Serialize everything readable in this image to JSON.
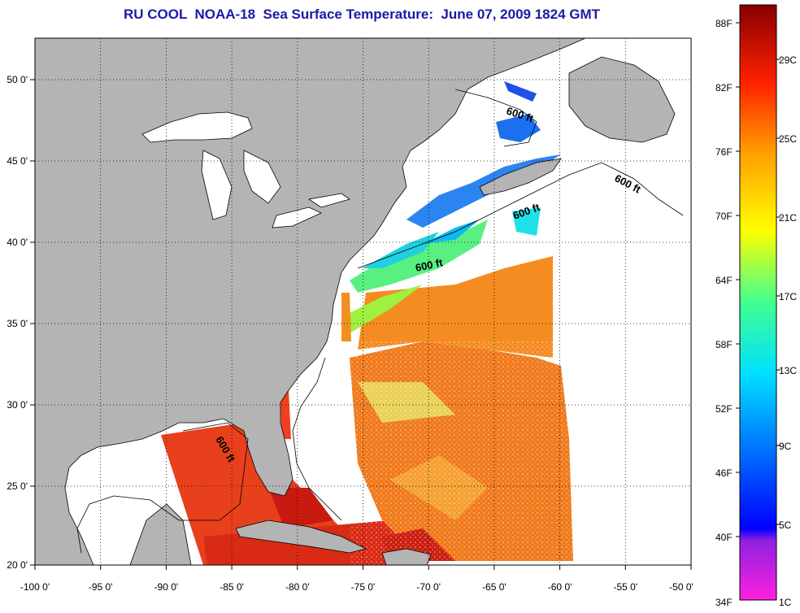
{
  "title": "RU COOL  NOAA-18  Sea Surface Temperature:  June 07, 2009 1824 GMT",
  "map": {
    "lon_ticks": [
      "-100 0'",
      "-95 0'",
      "-90 0'",
      "-85 0'",
      "-80 0'",
      "-75 0'",
      "-70 0'",
      "-65 0'",
      "-60 0'",
      "-55 0'",
      "-50 0'"
    ],
    "lat_ticks": [
      "50 0'",
      "45 0'",
      "40 0'",
      "35 0'",
      "30 0'",
      "25 0'",
      "20 0'"
    ],
    "lon_range": [
      -100,
      -50
    ],
    "lat_range": [
      20,
      52.5
    ],
    "contour_label": "600 ft",
    "land_color": "#b4b4b4",
    "ocean_color": "#ffffff"
  },
  "colorbar": {
    "fahrenheit_labels": [
      "88F",
      "82F",
      "76F",
      "70F",
      "64F",
      "58F",
      "52F",
      "46F",
      "40F",
      "34F"
    ],
    "celsius_labels": [
      "29C",
      "25C",
      "21C",
      "17C",
      "13C",
      "9C",
      "5C",
      "1C"
    ],
    "range_c": [
      1,
      31
    ]
  }
}
